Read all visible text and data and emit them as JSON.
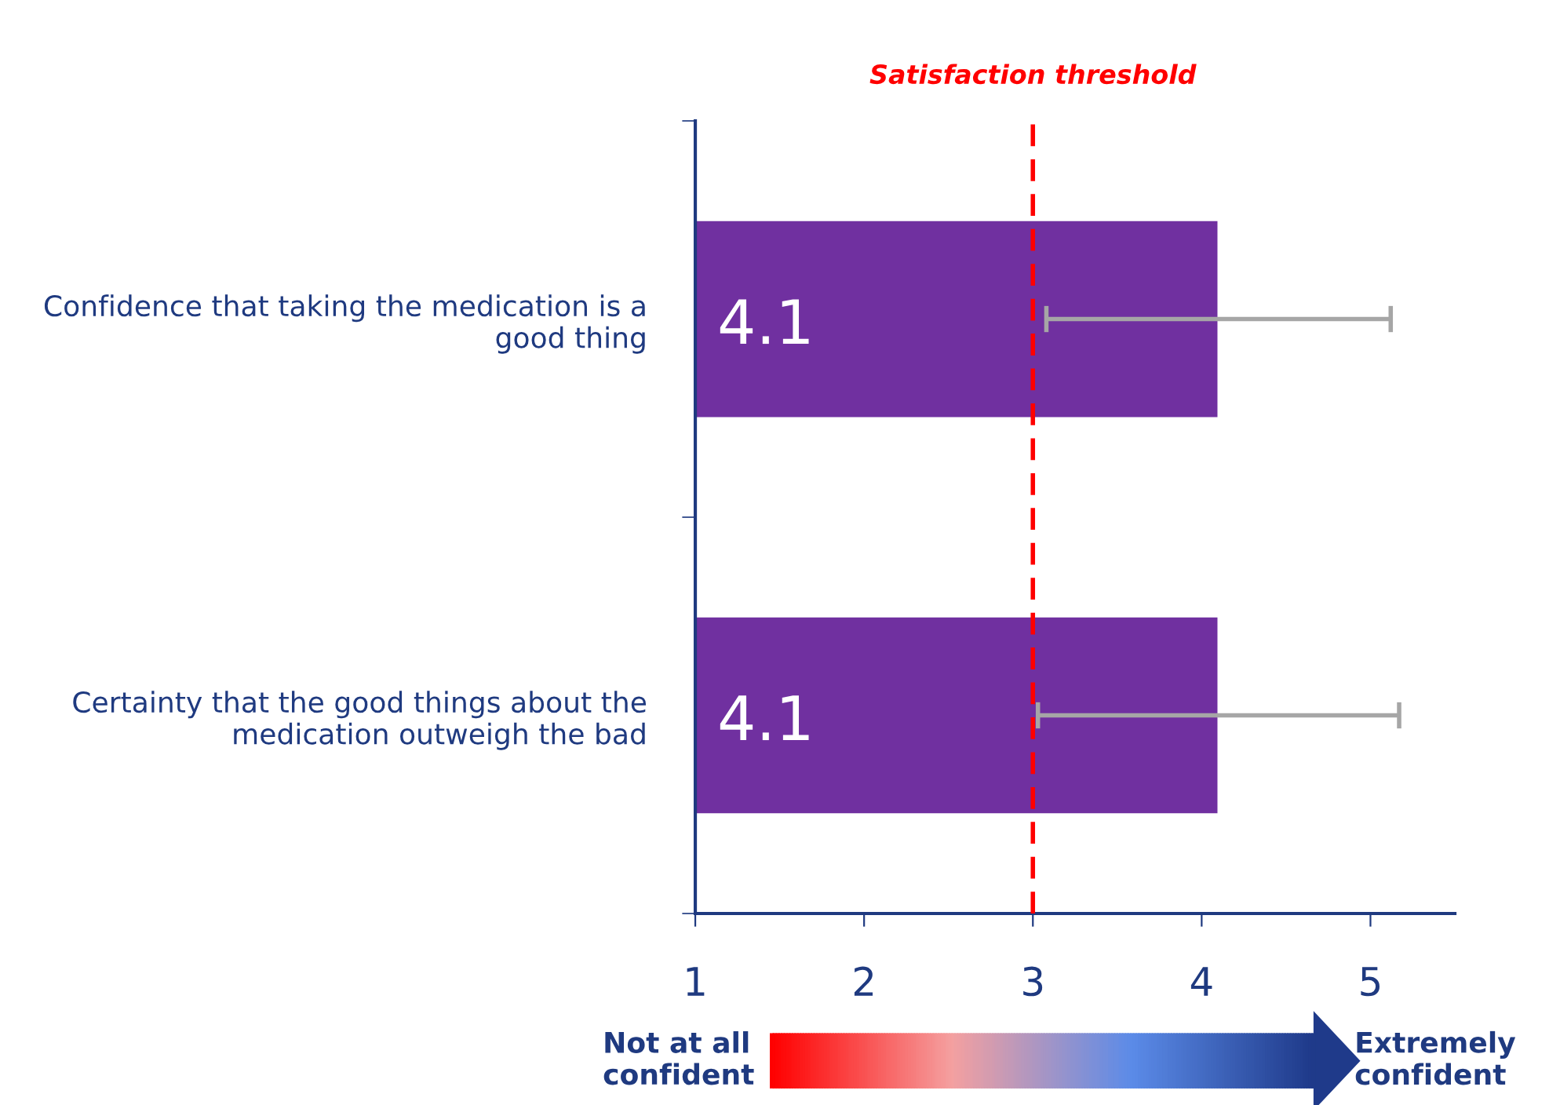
{
  "chart_data": {
    "type": "bar",
    "orientation": "horizontal",
    "categories": [
      "Confidence that taking the medication is a good thing",
      "Certainty that the good things about the medication outweigh the bad"
    ],
    "values": [
      4.1,
      4.1
    ],
    "color": "#7030a0",
    "errors": [
      1.02,
      1.07
    ],
    "data_labels": true,
    "xlim": [
      1,
      5.5
    ],
    "xticks": [
      1,
      2,
      3,
      4,
      5
    ],
    "grid": false,
    "ref_lines": [
      {
        "axis": "x",
        "value": 3,
        "label": "Satisfaction threshold",
        "color": "#ff0000",
        "line_style": "dashed"
      }
    ],
    "annotations": [
      "Not at all confident",
      "Extremely confident"
    ]
  }
}
